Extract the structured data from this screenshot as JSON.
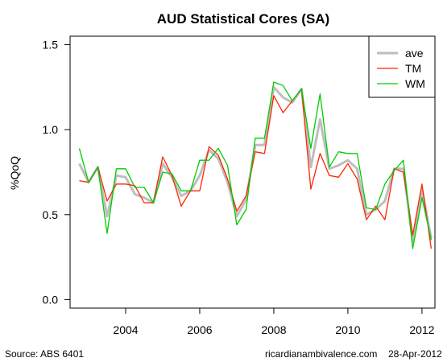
{
  "chart_data": {
    "type": "line",
    "title": "AUD Statistical Cores (SA)",
    "ylabel": "%QoQ",
    "xlabel": "",
    "ylim": [
      -0.05,
      1.55
    ],
    "xlim": [
      2002.5,
      2012.35
    ],
    "yticks": [
      "0.0",
      "0.5",
      "1.0",
      "1.5"
    ],
    "ytick_values": [
      0.0,
      0.5,
      1.0,
      1.5
    ],
    "xticks": [
      "2004",
      "2006",
      "2008",
      "2010",
      "2012"
    ],
    "xtick_values": [
      2004,
      2006,
      2008,
      2010,
      2012
    ],
    "grid": false,
    "legend_position": "top-right",
    "x": [
      2002.75,
      2003.0,
      2003.25,
      2003.5,
      2003.75,
      2004.0,
      2004.25,
      2004.5,
      2004.75,
      2005.0,
      2005.25,
      2005.5,
      2005.75,
      2006.0,
      2006.25,
      2006.5,
      2006.75,
      2007.0,
      2007.25,
      2007.5,
      2007.75,
      2008.0,
      2008.25,
      2008.5,
      2008.75,
      2009.0,
      2009.25,
      2009.5,
      2009.75,
      2010.0,
      2010.25,
      2010.5,
      2010.75,
      2011.0,
      2011.25,
      2011.5,
      2011.75,
      2012.0,
      2012.25
    ],
    "series": [
      {
        "name": "ave",
        "color": "#bebebe",
        "values": [
          0.8,
          0.69,
          0.78,
          0.49,
          0.73,
          0.72,
          0.62,
          0.6,
          0.57,
          0.8,
          0.72,
          0.61,
          0.64,
          0.73,
          0.88,
          0.83,
          0.69,
          0.49,
          0.59,
          0.91,
          0.91,
          1.25,
          1.19,
          1.16,
          1.24,
          0.78,
          1.06,
          0.77,
          0.79,
          0.82,
          0.77,
          0.5,
          0.53,
          0.58,
          0.77,
          0.77,
          0.34,
          0.65,
          0.36
        ]
      },
      {
        "name": "TM",
        "color": "#ff2500",
        "values": [
          0.7,
          0.69,
          0.78,
          0.58,
          0.68,
          0.68,
          0.67,
          0.57,
          0.57,
          0.84,
          0.73,
          0.55,
          0.64,
          0.64,
          0.9,
          0.85,
          0.71,
          0.52,
          0.61,
          0.87,
          0.86,
          1.2,
          1.1,
          1.17,
          1.24,
          0.65,
          0.86,
          0.73,
          0.72,
          0.8,
          0.71,
          0.47,
          0.55,
          0.47,
          0.77,
          0.75,
          0.38,
          0.68,
          0.3
        ]
      },
      {
        "name": "WM",
        "color": "#00cc00",
        "values": [
          0.89,
          0.69,
          0.78,
          0.39,
          0.77,
          0.77,
          0.66,
          0.66,
          0.57,
          0.75,
          0.74,
          0.64,
          0.64,
          0.82,
          0.82,
          0.89,
          0.79,
          0.44,
          0.53,
          0.95,
          0.95,
          1.28,
          1.26,
          1.17,
          1.24,
          0.89,
          1.21,
          0.78,
          0.87,
          0.86,
          0.86,
          0.54,
          0.53,
          0.68,
          0.76,
          0.82,
          0.3,
          0.6,
          0.35
        ]
      }
    ]
  },
  "footer": {
    "source": "Source: ABS 6401",
    "site": "ricardianambivalence.com",
    "date": "28-Apr-2012"
  }
}
